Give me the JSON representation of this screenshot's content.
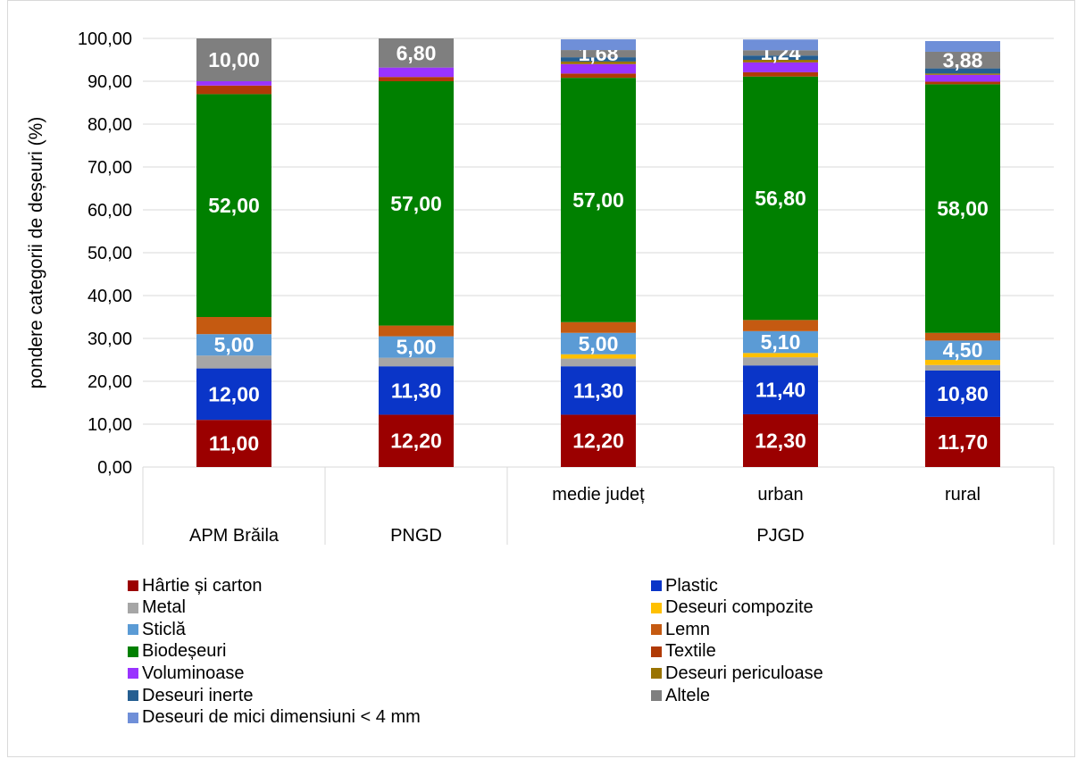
{
  "chart_data": {
    "type": "bar",
    "stacked": true,
    "ylabel": "pondere categorii de deșeuri (%)",
    "ylim": [
      0,
      100
    ],
    "y_ticks": [
      "0,00",
      "10,00",
      "20,00",
      "30,00",
      "40,00",
      "50,00",
      "60,00",
      "70,00",
      "80,00",
      "90,00",
      "100,00"
    ],
    "grid": true,
    "legend_position": "bottom",
    "categories": [
      "APM Brăila",
      "PNGD",
      "medie județ",
      "urban",
      "rural"
    ],
    "x_groups": [
      {
        "label": "APM Brăila",
        "span": [
          0,
          0
        ]
      },
      {
        "label": "PNGD",
        "span": [
          1,
          1
        ]
      },
      {
        "label": "PJGD",
        "span": [
          2,
          4
        ]
      }
    ],
    "x_sub_labels": [
      "",
      "",
      "medie județ",
      "urban",
      "rural"
    ],
    "series": [
      {
        "name": "Hârtie și carton",
        "color": "#9b0000",
        "values": [
          11.0,
          12.2,
          12.2,
          12.3,
          11.7
        ],
        "labels": [
          "11,00",
          "12,20",
          "12,20",
          "12,30",
          "11,70"
        ]
      },
      {
        "name": "Plastic",
        "color": "#0a35c8",
        "values": [
          12.0,
          11.3,
          11.3,
          11.4,
          10.8
        ],
        "labels": [
          "12,00",
          "11,30",
          "11,30",
          "11,40",
          "10,80"
        ]
      },
      {
        "name": "Metal",
        "color": "#a6a6a6",
        "values": [
          3.0,
          2.0,
          1.8,
          1.9,
          1.3
        ],
        "labels": [
          "",
          "",
          "",
          "",
          ""
        ]
      },
      {
        "name": "Deseuri compozite",
        "color": "#ffc000",
        "values": [
          0,
          0,
          1.0,
          1.0,
          1.2
        ],
        "labels": [
          "",
          "",
          "",
          "",
          ""
        ]
      },
      {
        "name": "Sticlă",
        "color": "#5b9bd5",
        "values": [
          5.0,
          5.0,
          5.0,
          5.1,
          4.5
        ],
        "labels": [
          "5,00",
          "5,00",
          "5,00",
          "5,10",
          "4,50"
        ]
      },
      {
        "name": "Lemn",
        "color": "#c55a11",
        "values": [
          4.0,
          2.5,
          2.5,
          2.6,
          1.8
        ],
        "labels": [
          "",
          "",
          "",
          "",
          ""
        ]
      },
      {
        "name": "Biodeșeuri",
        "color": "#008000",
        "values": [
          52.0,
          57.0,
          57.0,
          56.8,
          58.0
        ],
        "labels": [
          "52,00",
          "57,00",
          "57,00",
          "56,80",
          "58,00"
        ]
      },
      {
        "name": "Textile",
        "color": "#b03a05",
        "values": [
          2.0,
          1.0,
          1.0,
          1.0,
          0.6
        ],
        "labels": [
          "",
          "",
          "",
          "",
          ""
        ]
      },
      {
        "name": "Voluminoase",
        "color": "#9933ff",
        "values": [
          1.0,
          2.2,
          2.2,
          2.3,
          1.6
        ],
        "labels": [
          "",
          "",
          "",
          "",
          ""
        ]
      },
      {
        "name": "Deseuri periculoase",
        "color": "#997300",
        "values": [
          0,
          0,
          0.6,
          0.6,
          0.3
        ],
        "labels": [
          "",
          "",
          "",
          "",
          ""
        ]
      },
      {
        "name": "Deseuri inerte",
        "color": "#255e91",
        "values": [
          0,
          0,
          1.0,
          1.0,
          1.2
        ],
        "labels": [
          "",
          "",
          "",
          "",
          ""
        ]
      },
      {
        "name": "Altele",
        "color": "#7f7f7f",
        "values": [
          10.0,
          6.8,
          1.68,
          1.24,
          3.88
        ],
        "labels": [
          "10,00",
          "6,80",
          "1,68",
          "1,24",
          "3,88"
        ]
      },
      {
        "name": "Deseuri de mici dimensiuni < 4 mm",
        "color": "#6f8fd8",
        "values": [
          0,
          0,
          2.5,
          2.5,
          2.5
        ],
        "labels": [
          "",
          "",
          "",
          "",
          ""
        ]
      }
    ]
  }
}
